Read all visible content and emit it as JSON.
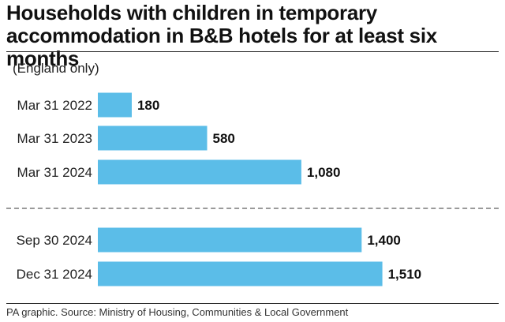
{
  "header": {
    "title_line1": "Households with children in temporary",
    "title_line2": "accommodation in B&B hotels for at least six months",
    "subtitle": "(England only)"
  },
  "footer": {
    "source": "PA graphic. Source: Ministry of Housing, Communities & Local Government"
  },
  "colors": {
    "bar": "#5bbde8",
    "dashed_line": "#9a9a9a"
  },
  "chart_data": {
    "type": "bar",
    "orientation": "horizontal",
    "title": "Households with children in temporary accommodation in B&B hotels for at least six months",
    "subtitle": "(England only)",
    "categories": [
      "Mar 31 2022",
      "Mar 31 2023",
      "Mar 31 2024",
      "Sep 30 2024",
      "Dec 31 2024"
    ],
    "values": [
      180,
      580,
      1080,
      1400,
      1510
    ],
    "value_labels": [
      "180",
      "580",
      "1,080",
      "1,400",
      "1,510"
    ],
    "xlim": [
      0,
      1680
    ],
    "grid": false,
    "legend": "none"
  }
}
